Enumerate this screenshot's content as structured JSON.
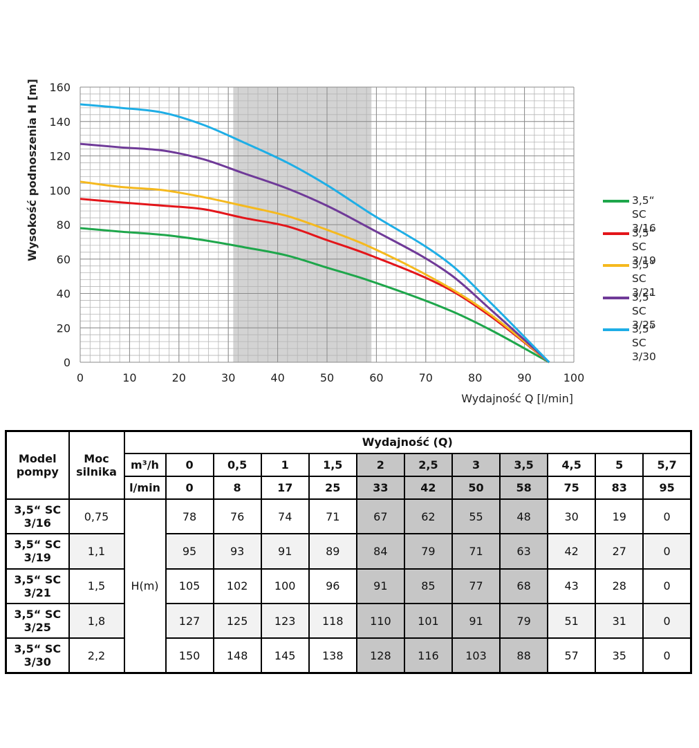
{
  "chart_data": {
    "type": "line",
    "xlabel": "Wydajność Q [l/min]",
    "ylabel": "Wysokość podnoszenia H [m]",
    "xlim": [
      0,
      100
    ],
    "ylim": [
      0,
      160
    ],
    "xticks": [
      0,
      10,
      20,
      30,
      40,
      50,
      60,
      70,
      80,
      90,
      100
    ],
    "yticks": [
      0,
      20,
      40,
      60,
      80,
      100,
      120,
      140,
      160
    ],
    "grid": true,
    "legend_position": "right",
    "highlight_range": [
      31,
      59
    ],
    "highlight_color": "#d3d3d3",
    "x": [
      0,
      8,
      17,
      25,
      33,
      42,
      50,
      58,
      75,
      83,
      95
    ],
    "series": [
      {
        "name": "3,5“ SC 3/16",
        "legend_lines": [
          "3,5“ SC",
          "3/16"
        ],
        "color": "#1ea64b",
        "values": [
          78,
          76,
          74,
          71,
          67,
          62,
          55,
          48,
          30,
          19,
          0
        ]
      },
      {
        "name": "3,5“ SC 3/19",
        "legend_lines": [
          "3,5“ SC",
          "3/19"
        ],
        "color": "#e3151a",
        "values": [
          95,
          93,
          91,
          89,
          84,
          79,
          71,
          63,
          42,
          27,
          0
        ]
      },
      {
        "name": "3,5“ SC 3/21",
        "legend_lines": [
          "3,5“ SC",
          "3/21"
        ],
        "color": "#f5b91e",
        "values": [
          105,
          102,
          100,
          96,
          91,
          85,
          77,
          68,
          43,
          28,
          0
        ]
      },
      {
        "name": "3,5“ SC 3/25",
        "legend_lines": [
          "3,5“ SC",
          "3/25"
        ],
        "color": "#6f3a98",
        "values": [
          127,
          125,
          123,
          118,
          110,
          101,
          91,
          79,
          51,
          31,
          0
        ]
      },
      {
        "name": "3,5“ SC 3/30",
        "legend_lines": [
          "3,5“ SC",
          "3/30"
        ],
        "color": "#1eaee6",
        "values": [
          150,
          148,
          145,
          138,
          128,
          116,
          103,
          88,
          57,
          35,
          0
        ]
      }
    ]
  },
  "table": {
    "header_model": [
      "Model",
      "pompy"
    ],
    "header_power": [
      "Moc",
      "silnika"
    ],
    "header_flow": "Wydajność (Q)",
    "unit_m3h": "m³/h",
    "unit_lmin": "l/min",
    "head_label": "H(m)",
    "m3h": [
      "0",
      "0,5",
      "1",
      "1,5",
      "2",
      "2,5",
      "3",
      "3,5",
      "4,5",
      "5",
      "5,7"
    ],
    "lmin": [
      "0",
      "8",
      "17",
      "25",
      "33",
      "42",
      "50",
      "58",
      "75",
      "83",
      "95"
    ],
    "shaded_columns": [
      4,
      5,
      6,
      7
    ],
    "rows": [
      {
        "model": [
          "3,5“ SC",
          "3/16"
        ],
        "power": "0,75",
        "values": [
          "78",
          "76",
          "74",
          "71",
          "67",
          "62",
          "55",
          "48",
          "30",
          "19",
          "0"
        ]
      },
      {
        "model": [
          "3,5“ SC",
          "3/19"
        ],
        "power": "1,1",
        "values": [
          "95",
          "93",
          "91",
          "89",
          "84",
          "79",
          "71",
          "63",
          "42",
          "27",
          "0"
        ]
      },
      {
        "model": [
          "3,5“ SC",
          "3/21"
        ],
        "power": "1,5",
        "values": [
          "105",
          "102",
          "100",
          "96",
          "91",
          "85",
          "77",
          "68",
          "43",
          "28",
          "0"
        ]
      },
      {
        "model": [
          "3,5“ SC",
          "3/25"
        ],
        "power": "1,8",
        "values": [
          "127",
          "125",
          "123",
          "118",
          "110",
          "101",
          "91",
          "79",
          "51",
          "31",
          "0"
        ]
      },
      {
        "model": [
          "3,5“ SC",
          "3/30"
        ],
        "power": "2,2",
        "values": [
          "150",
          "148",
          "145",
          "138",
          "128",
          "116",
          "103",
          "88",
          "57",
          "35",
          "0"
        ]
      }
    ]
  }
}
